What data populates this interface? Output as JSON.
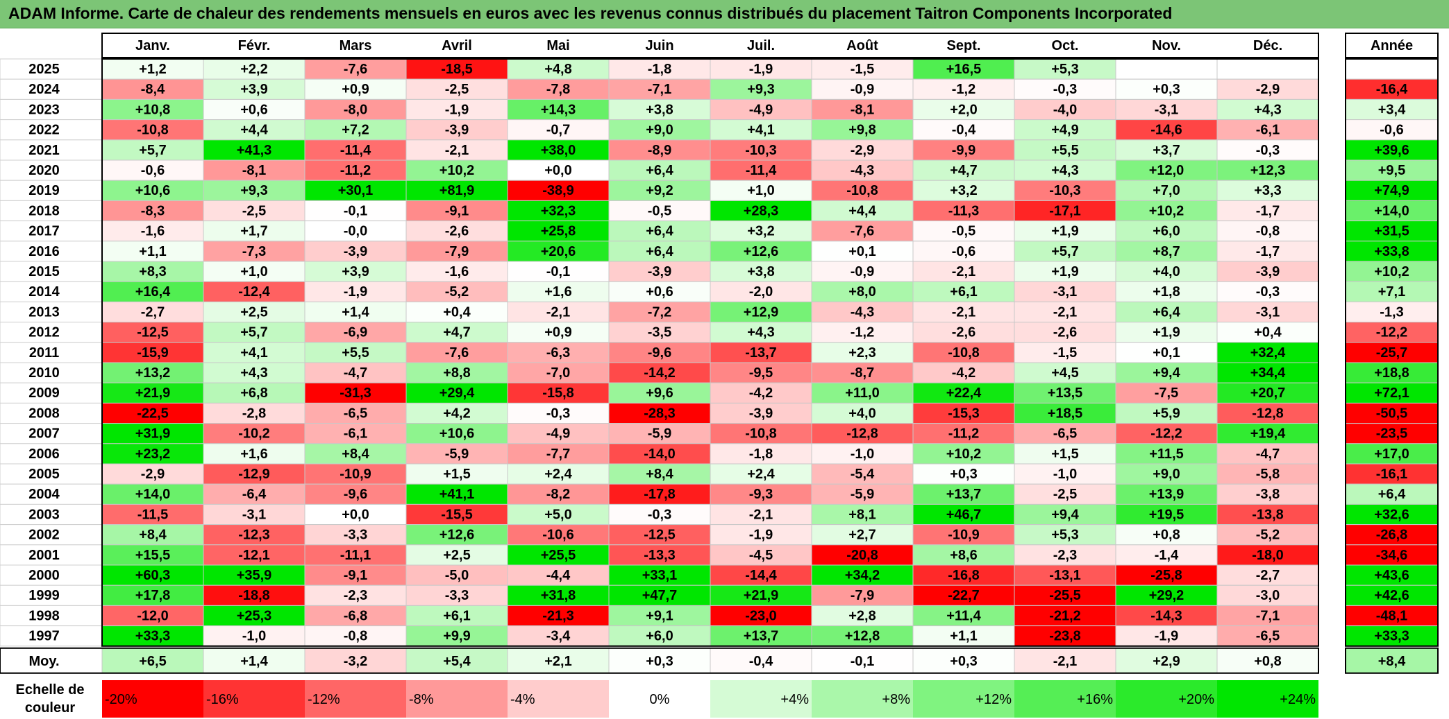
{
  "title": "ADAM Informe. Carte de chaleur des rendements mensuels en euros avec les revenus connus distribués du placement Taitron Components Incorporated",
  "chart_data": {
    "type": "heatmap",
    "columns": [
      "Janv.",
      "Févr.",
      "Mars",
      "Avril",
      "Mai",
      "Juin",
      "Juil.",
      "Août",
      "Sept.",
      "Oct.",
      "Nov.",
      "Déc."
    ],
    "year_column_label": "Année",
    "rows": [
      {
        "year": "2025",
        "months": [
          "+1,2",
          "+2,2",
          "-7,6",
          "-18,5",
          "+4,8",
          "-1,8",
          "-1,9",
          "-1,5",
          "+16,5",
          "+5,3",
          "",
          ""
        ],
        "annual": ""
      },
      {
        "year": "2024",
        "months": [
          "-8,4",
          "+3,9",
          "+0,9",
          "-2,5",
          "-7,8",
          "-7,1",
          "+9,3",
          "-0,9",
          "-1,2",
          "-0,3",
          "+0,3",
          "-2,9"
        ],
        "annual": "-16,4"
      },
      {
        "year": "2023",
        "months": [
          "+10,8",
          "+0,6",
          "-8,0",
          "-1,9",
          "+14,3",
          "+3,8",
          "-4,9",
          "-8,1",
          "+2,0",
          "-4,0",
          "-3,1",
          "+4,3"
        ],
        "annual": "+3,4"
      },
      {
        "year": "2022",
        "months": [
          "-10,8",
          "+4,4",
          "+7,2",
          "-3,9",
          "-0,7",
          "+9,0",
          "+4,1",
          "+9,8",
          "-0,4",
          "+4,9",
          "-14,6",
          "-6,1"
        ],
        "annual": "-0,6"
      },
      {
        "year": "2021",
        "months": [
          "+5,7",
          "+41,3",
          "-11,4",
          "-2,1",
          "+38,0",
          "-8,9",
          "-10,3",
          "-2,9",
          "-9,9",
          "+5,5",
          "+3,7",
          "-0,3"
        ],
        "annual": "+39,6"
      },
      {
        "year": "2020",
        "months": [
          "-0,6",
          "-8,1",
          "-11,2",
          "+10,2",
          "+0,0",
          "+6,4",
          "-11,4",
          "-4,3",
          "+4,7",
          "+4,3",
          "+12,0",
          "+12,3"
        ],
        "annual": "+9,5"
      },
      {
        "year": "2019",
        "months": [
          "+10,6",
          "+9,3",
          "+30,1",
          "+81,9",
          "-38,9",
          "+9,2",
          "+1,0",
          "-10,8",
          "+3,2",
          "-10,3",
          "+7,0",
          "+3,3"
        ],
        "annual": "+74,9"
      },
      {
        "year": "2018",
        "months": [
          "-8,3",
          "-2,5",
          "-0,1",
          "-9,1",
          "+32,3",
          "-0,5",
          "+28,3",
          "+4,4",
          "-11,3",
          "-17,1",
          "+10,2",
          "-1,7"
        ],
        "annual": "+14,0"
      },
      {
        "year": "2017",
        "months": [
          "-1,6",
          "+1,7",
          "-0,0",
          "-2,6",
          "+25,8",
          "+6,4",
          "+3,2",
          "-7,6",
          "-0,5",
          "+1,9",
          "+6,0",
          "-0,8"
        ],
        "annual": "+31,5"
      },
      {
        "year": "2016",
        "months": [
          "+1,1",
          "-7,3",
          "-3,9",
          "-7,9",
          "+20,6",
          "+6,4",
          "+12,6",
          "+0,1",
          "-0,6",
          "+5,7",
          "+8,7",
          "-1,7"
        ],
        "annual": "+33,8"
      },
      {
        "year": "2015",
        "months": [
          "+8,3",
          "+1,0",
          "+3,9",
          "-1,6",
          "-0,1",
          "-3,9",
          "+3,8",
          "-0,9",
          "-2,1",
          "+1,9",
          "+4,0",
          "-3,9"
        ],
        "annual": "+10,2"
      },
      {
        "year": "2014",
        "months": [
          "+16,4",
          "-12,4",
          "-1,9",
          "-5,2",
          "+1,6",
          "+0,6",
          "-2,0",
          "+8,0",
          "+6,1",
          "-3,1",
          "+1,8",
          "-0,3"
        ],
        "annual": "+7,1"
      },
      {
        "year": "2013",
        "months": [
          "-2,7",
          "+2,5",
          "+1,4",
          "+0,4",
          "-2,1",
          "-7,2",
          "+12,9",
          "-4,3",
          "-2,1",
          "-2,1",
          "+6,4",
          "-3,1"
        ],
        "annual": "-1,3"
      },
      {
        "year": "2012",
        "months": [
          "-12,5",
          "+5,7",
          "-6,9",
          "+4,7",
          "+0,9",
          "-3,5",
          "+4,3",
          "-1,2",
          "-2,6",
          "-2,6",
          "+1,9",
          "+0,4"
        ],
        "annual": "-12,2"
      },
      {
        "year": "2011",
        "months": [
          "-15,9",
          "+4,1",
          "+5,5",
          "-7,6",
          "-6,3",
          "-9,6",
          "-13,7",
          "+2,3",
          "-10,8",
          "-1,5",
          "+0,1",
          "+32,4"
        ],
        "annual": "-25,7"
      },
      {
        "year": "2010",
        "months": [
          "+13,2",
          "+4,3",
          "-4,7",
          "+8,8",
          "-7,0",
          "-14,2",
          "-9,5",
          "-8,7",
          "-4,2",
          "+4,5",
          "+9,4",
          "+34,4"
        ],
        "annual": "+18,8"
      },
      {
        "year": "2009",
        "months": [
          "+21,9",
          "+6,8",
          "-31,3",
          "+29,4",
          "-15,8",
          "+9,6",
          "-4,2",
          "+11,0",
          "+22,4",
          "+13,5",
          "-7,5",
          "+20,7"
        ],
        "annual": "+72,1"
      },
      {
        "year": "2008",
        "months": [
          "-22,5",
          "-2,8",
          "-6,5",
          "+4,2",
          "-0,3",
          "-28,3",
          "-3,9",
          "+4,0",
          "-15,3",
          "+18,5",
          "+5,9",
          "-12,8"
        ],
        "annual": "-50,5"
      },
      {
        "year": "2007",
        "months": [
          "+31,9",
          "-10,2",
          "-6,1",
          "+10,6",
          "-4,9",
          "-5,9",
          "-10,8",
          "-12,8",
          "-11,2",
          "-6,5",
          "-12,2",
          "+19,4"
        ],
        "annual": "-23,5"
      },
      {
        "year": "2006",
        "months": [
          "+23,2",
          "+1,6",
          "+8,4",
          "-5,9",
          "-7,7",
          "-14,0",
          "-1,8",
          "-1,0",
          "+10,2",
          "+1,5",
          "+11,5",
          "-4,7"
        ],
        "annual": "+17,0"
      },
      {
        "year": "2005",
        "months": [
          "-2,9",
          "-12,9",
          "-10,9",
          "+1,5",
          "+2,4",
          "+8,4",
          "+2,4",
          "-5,4",
          "+0,3",
          "-1,0",
          "+9,0",
          "-5,8"
        ],
        "annual": "-16,1"
      },
      {
        "year": "2004",
        "months": [
          "+14,0",
          "-6,4",
          "-9,6",
          "+41,1",
          "-8,2",
          "-17,8",
          "-9,3",
          "-5,9",
          "+13,7",
          "-2,5",
          "+13,9",
          "-3,8"
        ],
        "annual": "+6,4"
      },
      {
        "year": "2003",
        "months": [
          "-11,5",
          "-3,1",
          "+0,0",
          "-15,5",
          "+5,0",
          "-0,3",
          "-2,1",
          "+8,1",
          "+46,7",
          "+9,4",
          "+19,5",
          "-13,8"
        ],
        "annual": "+32,6"
      },
      {
        "year": "2002",
        "months": [
          "+8,4",
          "-12,3",
          "-3,3",
          "+12,6",
          "-10,6",
          "-12,5",
          "-1,9",
          "+2,7",
          "-10,9",
          "+5,3",
          "+0,8",
          "-5,2"
        ],
        "annual": "-26,8"
      },
      {
        "year": "2001",
        "months": [
          "+15,5",
          "-12,1",
          "-11,1",
          "+2,5",
          "+25,5",
          "-13,3",
          "-4,5",
          "-20,8",
          "+8,6",
          "-2,3",
          "-1,4",
          "-18,0"
        ],
        "annual": "-34,6"
      },
      {
        "year": "2000",
        "months": [
          "+60,3",
          "+35,9",
          "-9,1",
          "-5,0",
          "-4,4",
          "+33,1",
          "-14,4",
          "+34,2",
          "-16,8",
          "-13,1",
          "-25,8",
          "-2,7"
        ],
        "annual": "+43,6"
      },
      {
        "year": "1999",
        "months": [
          "+17,8",
          "-18,8",
          "-2,3",
          "-3,3",
          "+31,8",
          "+47,7",
          "+21,9",
          "-7,9",
          "-22,7",
          "-25,5",
          "+29,2",
          "-3,0"
        ],
        "annual": "+42,6"
      },
      {
        "year": "1998",
        "months": [
          "-12,0",
          "+25,3",
          "-6,8",
          "+6,1",
          "-21,3",
          "+9,1",
          "-23,0",
          "+2,8",
          "+11,4",
          "-21,2",
          "-14,3",
          "-7,1"
        ],
        "annual": "-48,1"
      },
      {
        "year": "1997",
        "months": [
          "+33,3",
          "-1,0",
          "-0,8",
          "+9,9",
          "-3,4",
          "+6,0",
          "+13,7",
          "+12,8",
          "+1,1",
          "-23,8",
          "-1,9",
          "-6,5"
        ],
        "annual": "+33,3"
      }
    ],
    "average": {
      "label": "Moy.",
      "months": [
        "+6,5",
        "+1,4",
        "-3,2",
        "+5,4",
        "+2,1",
        "+0,3",
        "-0,4",
        "-0,1",
        "+0,3",
        "-2,1",
        "+2,9",
        "+0,8"
      ],
      "annual": "+8,4"
    },
    "color_scale": {
      "label_line1": "Echelle de",
      "label_line2": "couleur",
      "stops": [
        {
          "label": "-20%",
          "value": -20
        },
        {
          "label": "-16%",
          "value": -16
        },
        {
          "label": "-12%",
          "value": -12
        },
        {
          "label": "-8%",
          "value": -8
        },
        {
          "label": "-4%",
          "value": -4
        },
        {
          "label": "0%",
          "value": 0
        },
        {
          "label": "+4%",
          "value": 4
        },
        {
          "label": "+8%",
          "value": 8
        },
        {
          "label": "+12%",
          "value": 12
        },
        {
          "label": "+16%",
          "value": 16
        },
        {
          "label": "+20%",
          "value": 20
        },
        {
          "label": "+24%",
          "value": 24
        }
      ],
      "negative_color": "#ff0000",
      "neutral_color": "#ffffff",
      "positive_color": "#00e600"
    }
  }
}
